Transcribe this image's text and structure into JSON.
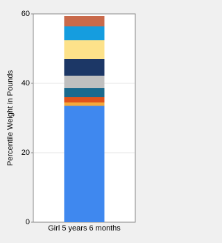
{
  "chart_data": {
    "type": "stacked_bar",
    "y_label": "Percentile Weight in Pounds",
    "categories": [
      "Girl 5 years 6 months"
    ],
    "series": [
      {
        "color": "#3f88ef",
        "values": [
          33.5
        ]
      },
      {
        "color": "#f5a93b",
        "values": [
          1.0
        ]
      },
      {
        "color": "#e0531c",
        "values": [
          1.5
        ]
      },
      {
        "color": "#1a6a8e",
        "values": [
          2.6
        ]
      },
      {
        "color": "#c0c0c0",
        "values": [
          3.6
        ]
      },
      {
        "color": "#1c3766",
        "values": [
          4.8
        ]
      },
      {
        "color": "#fde28a",
        "values": [
          5.4
        ]
      },
      {
        "color": "#159ddf",
        "values": [
          4.0
        ]
      },
      {
        "color": "#c96a4b",
        "values": [
          3.0
        ]
      }
    ],
    "ylim": [
      0,
      60
    ],
    "yticks": [
      0,
      20,
      40,
      60
    ],
    "grid": true
  }
}
